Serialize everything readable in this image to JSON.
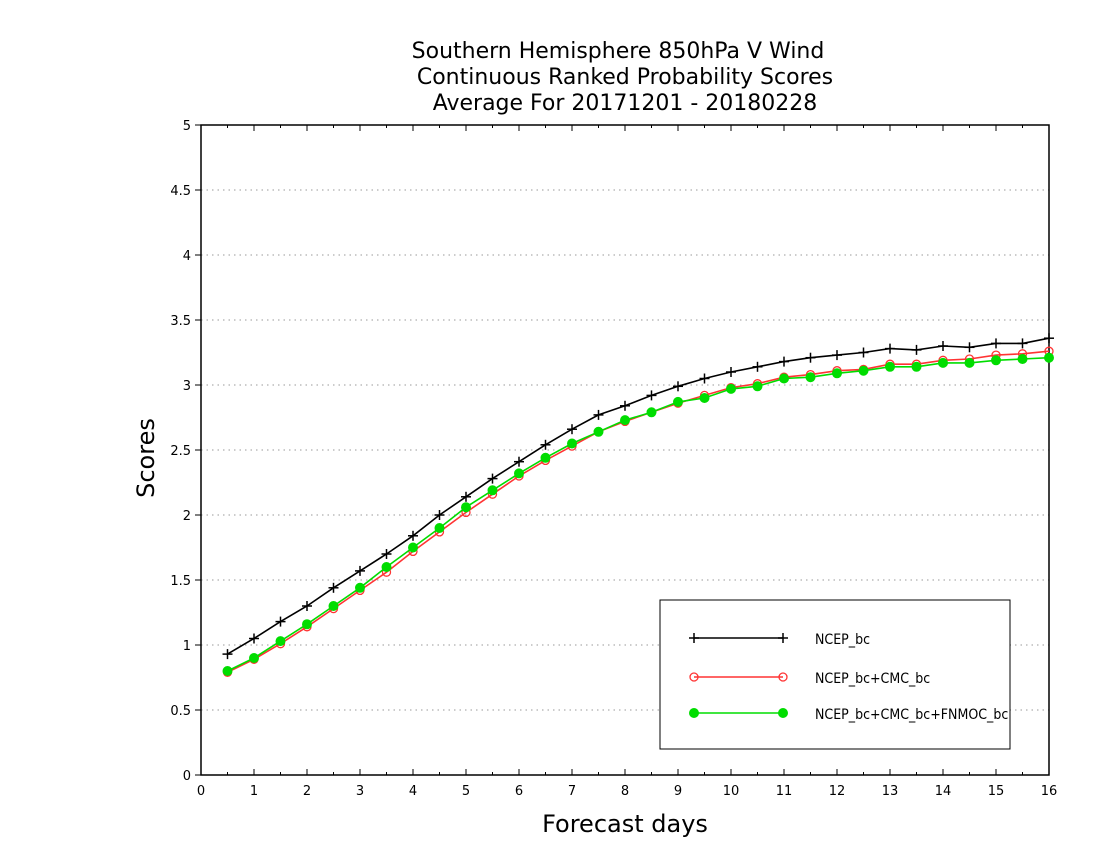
{
  "chart_data": {
    "type": "line",
    "title": [
      "Southern Hemisphere 850hPa V Wind",
      "Continuous Ranked Probability Scores",
      "Average For 20171201 - 20180228"
    ],
    "xlabel": "Forecast days",
    "ylabel": "Scores",
    "xlim": [
      0,
      16
    ],
    "ylim": [
      0,
      5
    ],
    "xticks": [
      "0",
      "1",
      "2",
      "3",
      "4",
      "5",
      "6",
      "7",
      "8",
      "9",
      "10",
      "11",
      "12",
      "13",
      "14",
      "15",
      "16"
    ],
    "yticks": [
      "0",
      "0.5",
      "1",
      "1.5",
      "2",
      "2.5",
      "3",
      "3.5",
      "4",
      "4.5",
      "5"
    ],
    "grid": "horizontal-dotted",
    "legend_position": "bottom-right",
    "x": [
      0.5,
      1,
      1.5,
      2,
      2.5,
      3,
      3.5,
      4,
      4.5,
      5,
      5.5,
      6,
      6.5,
      7,
      7.5,
      8,
      8.5,
      9,
      9.5,
      10,
      10.5,
      11,
      11.5,
      12,
      12.5,
      13,
      13.5,
      14,
      14.5,
      15,
      15.5,
      16
    ],
    "series": [
      {
        "name": "NCEP_bc",
        "color": "#000000",
        "marker": "plus",
        "values": [
          0.93,
          1.05,
          1.18,
          1.3,
          1.44,
          1.57,
          1.7,
          1.84,
          2.0,
          2.14,
          2.28,
          2.41,
          2.54,
          2.66,
          2.77,
          2.84,
          2.92,
          2.99,
          3.05,
          3.1,
          3.14,
          3.18,
          3.21,
          3.23,
          3.25,
          3.28,
          3.27,
          3.3,
          3.29,
          3.32,
          3.32,
          3.36
        ]
      },
      {
        "name": "NCEP_bc+CMC_bc",
        "color": "#ff3333",
        "marker": "open-circle",
        "values": [
          0.79,
          0.89,
          1.01,
          1.14,
          1.28,
          1.42,
          1.56,
          1.72,
          1.87,
          2.02,
          2.16,
          2.3,
          2.42,
          2.53,
          2.64,
          2.72,
          2.79,
          2.86,
          2.92,
          2.98,
          3.01,
          3.06,
          3.08,
          3.11,
          3.12,
          3.16,
          3.16,
          3.19,
          3.2,
          3.23,
          3.24,
          3.26
        ]
      },
      {
        "name": "NCEP_bc+CMC_bc+FNMOC_bc",
        "color": "#00dd00",
        "marker": "filled-circle",
        "values": [
          0.8,
          0.9,
          1.03,
          1.16,
          1.3,
          1.44,
          1.6,
          1.75,
          1.9,
          2.06,
          2.19,
          2.32,
          2.44,
          2.55,
          2.64,
          2.73,
          2.79,
          2.87,
          2.9,
          2.97,
          2.99,
          3.05,
          3.06,
          3.09,
          3.11,
          3.14,
          3.14,
          3.17,
          3.17,
          3.19,
          3.2,
          3.21
        ]
      }
    ]
  }
}
